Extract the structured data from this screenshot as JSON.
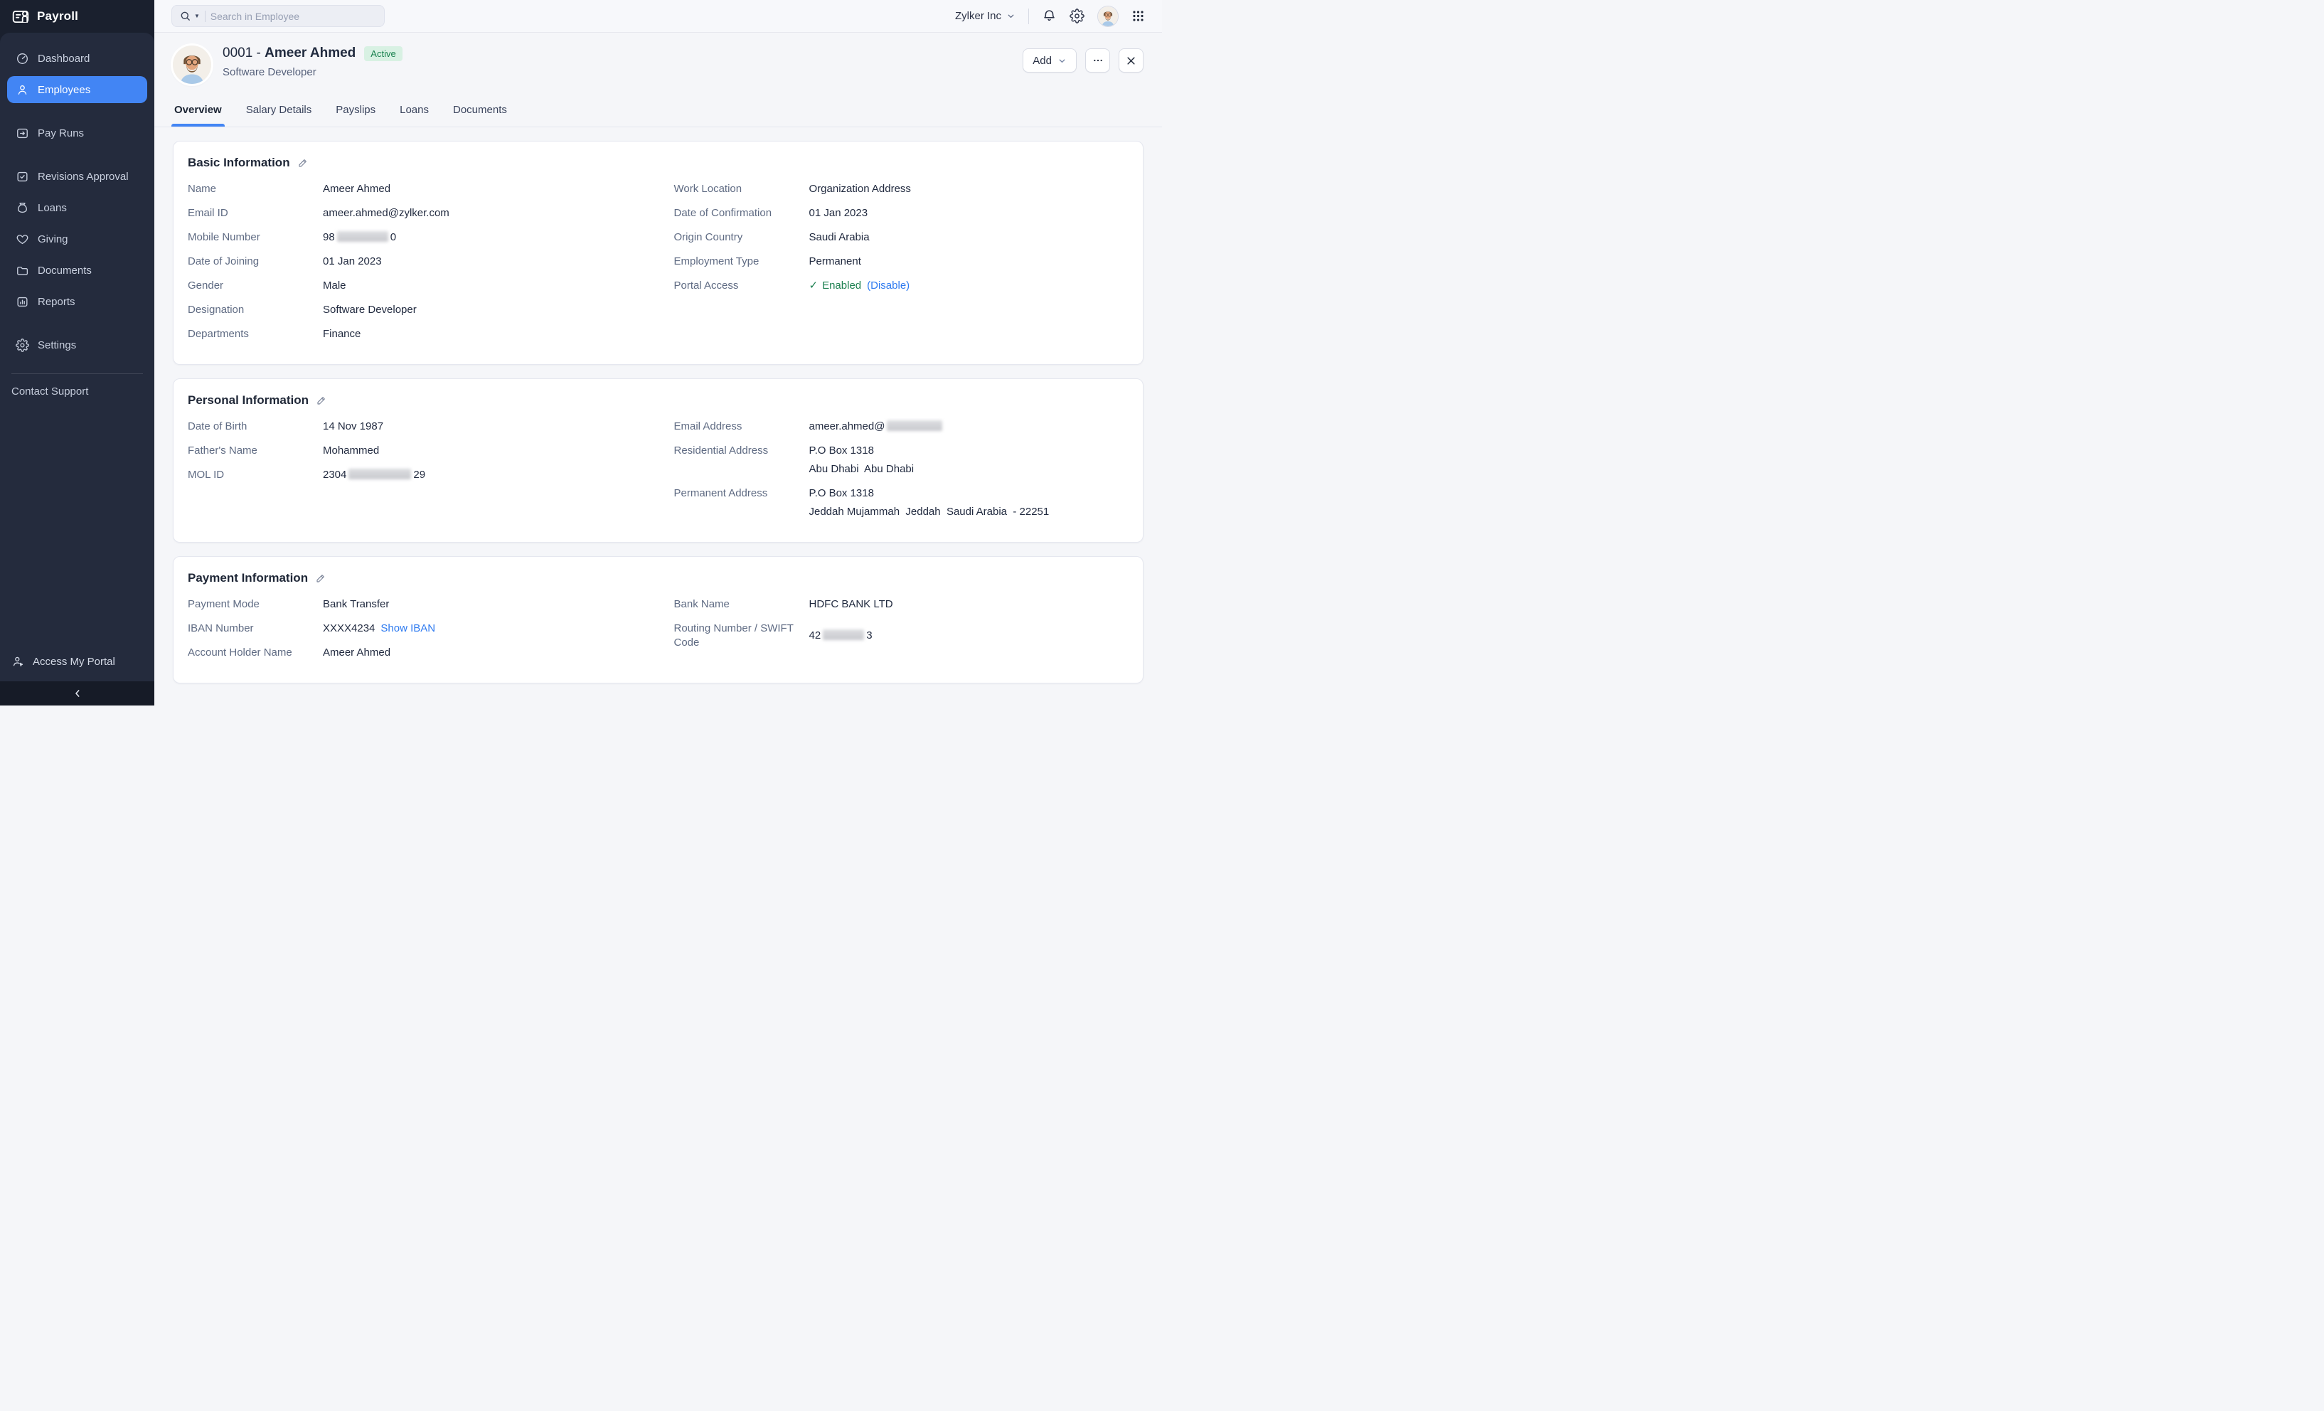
{
  "app": {
    "name": "Payroll"
  },
  "colors": {
    "accent": "#4285f4",
    "sidebar_bg": "#242b3d",
    "status_green": "#1d8050",
    "link_blue": "#2f7bf0",
    "badge_bg": "#d8f1e3",
    "badge_text": "#17804d"
  },
  "sidebar": {
    "items": [
      {
        "label": "Dashboard",
        "icon": "dashboard-icon"
      },
      {
        "label": "Employees",
        "icon": "employees-icon",
        "active": true
      },
      {
        "label": "Pay Runs",
        "icon": "pay-runs-icon"
      },
      {
        "label": "Revisions Approval",
        "icon": "revisions-approval-icon"
      },
      {
        "label": "Loans",
        "icon": "loans-icon"
      },
      {
        "label": "Giving",
        "icon": "giving-icon"
      },
      {
        "label": "Documents",
        "icon": "documents-icon"
      },
      {
        "label": "Reports",
        "icon": "reports-icon"
      },
      {
        "label": "Settings",
        "icon": "settings-icon"
      }
    ],
    "support_label": "Contact Support",
    "portal_label": "Access My Portal"
  },
  "topbar": {
    "search_placeholder": "Search in Employee",
    "org_name": "Zylker Inc"
  },
  "employee_header": {
    "number_prefix": "0001 - ",
    "name": "Ameer Ahmed",
    "status": "Active",
    "designation": "Software Developer",
    "add_label": "Add"
  },
  "tabs": {
    "items": [
      {
        "label": "Overview",
        "active": true
      },
      {
        "label": "Salary Details"
      },
      {
        "label": "Payslips"
      },
      {
        "label": "Loans"
      },
      {
        "label": "Documents"
      }
    ]
  },
  "cards": {
    "basic": {
      "title": "Basic Information",
      "left": [
        {
          "label": "Name",
          "lines": [
            [
              {
                "t": "text",
                "v": "Ameer Ahmed"
              }
            ]
          ]
        },
        {
          "label": "Email ID",
          "lines": [
            [
              {
                "t": "text",
                "v": "ameer.ahmed@zylker.com"
              }
            ]
          ]
        },
        {
          "label": "Mobile Number",
          "lines": [
            [
              {
                "t": "text",
                "v": "98"
              },
              {
                "t": "redact",
                "w": 72
              },
              {
                "t": "text",
                "v": "0"
              }
            ]
          ]
        },
        {
          "label": "Date of Joining",
          "lines": [
            [
              {
                "t": "text",
                "v": "01 Jan 2023"
              }
            ]
          ]
        },
        {
          "label": "Gender",
          "lines": [
            [
              {
                "t": "text",
                "v": "Male"
              }
            ]
          ]
        },
        {
          "label": "Designation",
          "lines": [
            [
              {
                "t": "text",
                "v": "Software Developer"
              }
            ]
          ]
        },
        {
          "label": "Departments",
          "lines": [
            [
              {
                "t": "text",
                "v": "Finance"
              }
            ]
          ]
        }
      ],
      "right": [
        {
          "label": "Work Location",
          "lines": [
            [
              {
                "t": "text",
                "v": "Organization Address"
              }
            ]
          ]
        },
        {
          "label": "Date of Confirmation",
          "lines": [
            [
              {
                "t": "text",
                "v": "01 Jan 2023"
              }
            ]
          ]
        },
        {
          "label": "Origin Country",
          "lines": [
            [
              {
                "t": "text",
                "v": "Saudi Arabia"
              }
            ]
          ]
        },
        {
          "label": "Employment Type",
          "lines": [
            [
              {
                "t": "text",
                "v": "Permanent"
              }
            ]
          ]
        },
        {
          "label": "Portal Access",
          "lines": [
            [
              {
                "t": "check"
              },
              {
                "t": "green",
                "v": "Enabled"
              },
              {
                "t": "link",
                "v": "(Disable)",
                "name": "disable-portal-link"
              }
            ]
          ]
        }
      ]
    },
    "personal": {
      "title": "Personal Information",
      "left": [
        {
          "label": "Date of Birth",
          "lines": [
            [
              {
                "t": "text",
                "v": "14 Nov 1987"
              }
            ]
          ]
        },
        {
          "label": "Father's Name",
          "lines": [
            [
              {
                "t": "text",
                "v": "Mohammed"
              }
            ]
          ]
        },
        {
          "label": "MOL ID",
          "lines": [
            [
              {
                "t": "text",
                "v": "2304"
              },
              {
                "t": "redact",
                "w": 88
              },
              {
                "t": "text",
                "v": "29"
              }
            ]
          ]
        }
      ],
      "right": [
        {
          "label": "Email Address",
          "lines": [
            [
              {
                "t": "text",
                "v": "ameer.ahmed@"
              },
              {
                "t": "redact",
                "w": 78
              }
            ]
          ]
        },
        {
          "label": "Residential Address",
          "lines": [
            [
              {
                "t": "text",
                "v": "P.O Box 1318"
              }
            ],
            [
              {
                "t": "text",
                "v": "Abu Dhabi  Abu Dhabi"
              }
            ]
          ]
        },
        {
          "label": "Permanent Address",
          "lines": [
            [
              {
                "t": "text",
                "v": "P.O Box 1318"
              }
            ],
            [
              {
                "t": "text",
                "v": "Jeddah Mujammah  Jeddah  Saudi Arabia  - 22251"
              }
            ]
          ]
        }
      ]
    },
    "payment": {
      "title": "Payment Information",
      "left": [
        {
          "label": "Payment Mode",
          "lines": [
            [
              {
                "t": "text",
                "v": "Bank Transfer"
              }
            ]
          ]
        },
        {
          "label": "IBAN Number",
          "lines": [
            [
              {
                "t": "text",
                "v": "XXXX4234"
              },
              {
                "t": "link",
                "v": "Show IBAN",
                "name": "show-iban-link"
              }
            ]
          ]
        },
        {
          "label": "Account Holder Name",
          "lines": [
            [
              {
                "t": "text",
                "v": "Ameer Ahmed"
              }
            ]
          ]
        }
      ],
      "right": [
        {
          "label": "Bank Name",
          "lines": [
            [
              {
                "t": "text",
                "v": "HDFC BANK LTD"
              }
            ]
          ]
        },
        {
          "label": "Routing Number / SWIFT Code",
          "center": true,
          "lines": [
            [
              {
                "t": "text",
                "v": "42"
              },
              {
                "t": "redact",
                "w": 58
              },
              {
                "t": "text",
                "v": "3"
              }
            ]
          ]
        }
      ]
    }
  }
}
